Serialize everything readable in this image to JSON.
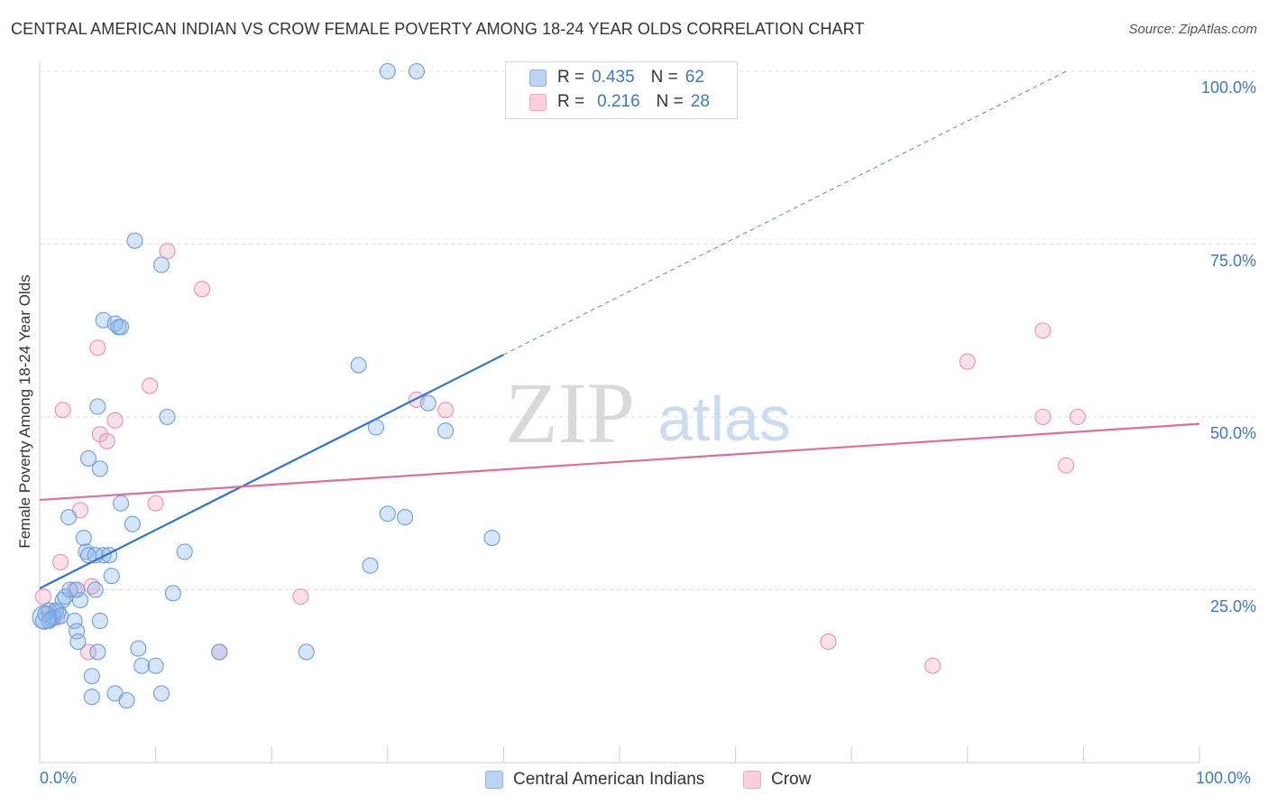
{
  "title": "CENTRAL AMERICAN INDIAN VS CROW FEMALE POVERTY AMONG 18-24 YEAR OLDS CORRELATION CHART",
  "source": "Source: ZipAtlas.com",
  "watermark": {
    "zip": "ZIP",
    "atlas": "atlas"
  },
  "legend": {
    "r_label": "R =",
    "n_label": "N =",
    "rows": [
      {
        "r": "0.435",
        "n": "62"
      },
      {
        "r": "0.216",
        "n": "28"
      }
    ]
  },
  "chart_data": {
    "type": "scatter",
    "title": "CENTRAL AMERICAN INDIAN VS CROW FEMALE POVERTY AMONG 18-24 YEAR OLDS CORRELATION CHART",
    "xlabel": "",
    "ylabel": "Female Poverty Among 18-24 Year Olds",
    "xlim": [
      0,
      100
    ],
    "ylim": [
      0,
      100
    ],
    "x_tick_labels": [
      "0.0%",
      "100.0%"
    ],
    "y_ticks": [
      25,
      50,
      75,
      100
    ],
    "y_tick_labels": [
      "25.0%",
      "50.0%",
      "75.0%",
      "100.0%"
    ],
    "grid": true,
    "series": [
      {
        "name": "Central American Indians",
        "color": "#8ab4e8",
        "trend_color": "#2f74d0",
        "r": 0.435,
        "n": 62,
        "trend": {
          "x0": 0,
          "y0": 25.2,
          "x1": 40,
          "y1": 59.0,
          "x_dash_end": 100
        },
        "points": [
          [
            0.3,
            20.5
          ],
          [
            0.5,
            21.5
          ],
          [
            0.8,
            22.0
          ],
          [
            1.0,
            20.8
          ],
          [
            1.2,
            21.0
          ],
          [
            1.4,
            22.0
          ],
          [
            1.6,
            21.8
          ],
          [
            1.8,
            21.2
          ],
          [
            2.0,
            23.5
          ],
          [
            2.2,
            24.0
          ],
          [
            2.5,
            35.5
          ],
          [
            2.6,
            25.0
          ],
          [
            3.0,
            20.5
          ],
          [
            3.2,
            19.0
          ],
          [
            3.3,
            17.5
          ],
          [
            3.5,
            23.5
          ],
          [
            3.2,
            25.0
          ],
          [
            3.8,
            32.5
          ],
          [
            4.0,
            30.5
          ],
          [
            4.2,
            30.0
          ],
          [
            4.5,
            12.5
          ],
          [
            4.5,
            9.5
          ],
          [
            4.8,
            30.0
          ],
          [
            4.8,
            25.0
          ],
          [
            4.2,
            44.0
          ],
          [
            5.0,
            16.0
          ],
          [
            5.2,
            20.5
          ],
          [
            5.5,
            30.0
          ],
          [
            5.0,
            51.5
          ],
          [
            5.2,
            42.5
          ],
          [
            6.0,
            30.0
          ],
          [
            6.2,
            27.0
          ],
          [
            6.5,
            10.0
          ],
          [
            7.0,
            37.5
          ],
          [
            7.5,
            9.0
          ],
          [
            5.5,
            64.0
          ],
          [
            6.5,
            63.5
          ],
          [
            6.8,
            63.0
          ],
          [
            7.0,
            63.0
          ],
          [
            8.0,
            34.5
          ],
          [
            8.2,
            75.5
          ],
          [
            8.5,
            16.5
          ],
          [
            8.8,
            14.0
          ],
          [
            10.0,
            14.0
          ],
          [
            10.5,
            10.0
          ],
          [
            10.5,
            72.0
          ],
          [
            11.0,
            50.0
          ],
          [
            11.5,
            24.5
          ],
          [
            12.5,
            30.5
          ],
          [
            15.5,
            16.0
          ],
          [
            23.0,
            16.0
          ],
          [
            27.5,
            57.5
          ],
          [
            28.5,
            28.5
          ],
          [
            29.0,
            48.5
          ],
          [
            30.0,
            36.0
          ],
          [
            31.5,
            35.5
          ],
          [
            33.5,
            52.0
          ],
          [
            35.0,
            48.0
          ],
          [
            39.0,
            32.5
          ],
          [
            30.0,
            100.0
          ],
          [
            32.5,
            100.0
          ],
          [
            0.8,
            20.5
          ]
        ]
      },
      {
        "name": "Crow",
        "color": "#f4a8c3",
        "trend_color": "#e06e98",
        "r": 0.216,
        "n": 28,
        "trend": {
          "x0": 0,
          "y0": 38.0,
          "x1": 100,
          "y1": 49.0
        },
        "points": [
          [
            0.3,
            24.0
          ],
          [
            0.8,
            22.0
          ],
          [
            1.5,
            21.0
          ],
          [
            1.8,
            29.0
          ],
          [
            2.0,
            51.0
          ],
          [
            3.0,
            25.0
          ],
          [
            3.5,
            36.5
          ],
          [
            4.5,
            25.5
          ],
          [
            4.2,
            16.0
          ],
          [
            5.0,
            60.0
          ],
          [
            5.2,
            47.5
          ],
          [
            5.8,
            46.5
          ],
          [
            6.5,
            49.5
          ],
          [
            9.5,
            54.5
          ],
          [
            10.0,
            37.5
          ],
          [
            11.0,
            74.0
          ],
          [
            14.0,
            68.5
          ],
          [
            15.5,
            16.0
          ],
          [
            22.5,
            24.0
          ],
          [
            32.5,
            52.5
          ],
          [
            35.0,
            51.0
          ],
          [
            68.0,
            17.5
          ],
          [
            77.0,
            14.0
          ],
          [
            80.0,
            58.0
          ],
          [
            86.5,
            50.0
          ],
          [
            86.5,
            62.5
          ],
          [
            88.5,
            43.0
          ],
          [
            89.5,
            50.0
          ]
        ]
      }
    ]
  }
}
